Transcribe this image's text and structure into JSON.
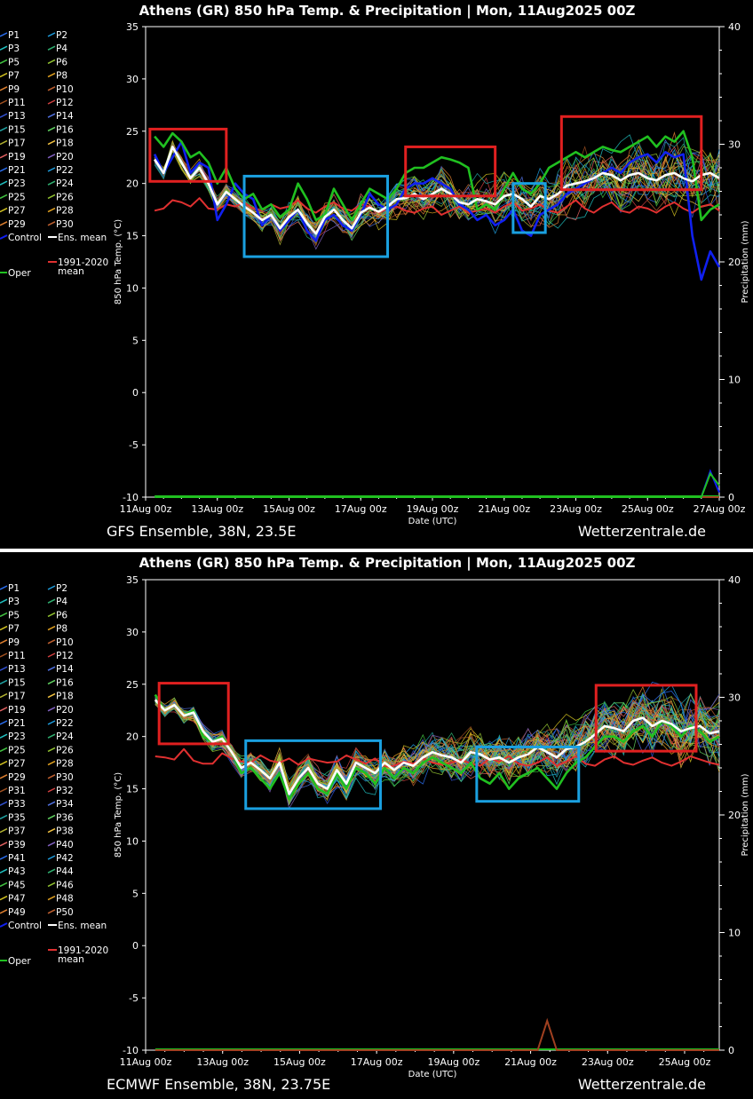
{
  "chart_data": [
    {
      "type": "line",
      "title": "Athens  (GR)  850 hPa Temp. & Precipitation | Mon, 11Aug2025 00Z",
      "ylabel": "850 hPa Temp. (°C)",
      "y2label": "Precipitation (mm)",
      "xlabel": "Date (UTC)",
      "ylim": [
        -10,
        35
      ],
      "y2lim": [
        0,
        40
      ],
      "yticks": [
        "35",
        "30",
        "25",
        "20",
        "15",
        "10",
        "5",
        "0",
        "-5",
        "-10"
      ],
      "y2ticks": [
        "40",
        "30",
        "20",
        "10",
        "0"
      ],
      "xticks": [
        "11Aug 00z",
        "13Aug 00z",
        "15Aug 00z",
        "17Aug 00z",
        "19Aug 00z",
        "21Aug 00z",
        "23Aug 00z",
        "25Aug 00z",
        "27Aug 00z"
      ],
      "footer_left": "GFS Ensemble, 38N, 23.5E",
      "footer_right": "Wetterzentrale.de",
      "legend": [
        "P1",
        "P2",
        "P3",
        "P4",
        "P5",
        "P6",
        "P7",
        "P8",
        "P9",
        "P10",
        "P11",
        "P12",
        "P13",
        "P14",
        "P15",
        "P16",
        "P17",
        "P18",
        "P19",
        "P20",
        "P21",
        "P22",
        "P23",
        "P24",
        "P25",
        "P26",
        "P27",
        "P28",
        "P29",
        "P30"
      ],
      "legend_special": [
        "Control",
        "Ens. mean",
        "1991-2020 mean",
        "Oper"
      ],
      "ens_mean": [
        22.3,
        21.0,
        23.5,
        22.0,
        20.5,
        21.5,
        20.0,
        18.0,
        19.2,
        18.5,
        17.8,
        17.2,
        16.5,
        17.0,
        15.7,
        16.8,
        17.5,
        16.2,
        15.2,
        16.8,
        17.5,
        16.5,
        15.7,
        17.2,
        17.7,
        17.3,
        17.8,
        18.5,
        18.6,
        19.0,
        18.5,
        19.0,
        19.5,
        19.0,
        18.2,
        18.0,
        18.5,
        18.3,
        18.0,
        18.8,
        19.0,
        18.5,
        17.8,
        18.8,
        18.5,
        19.0,
        19.8,
        20.0,
        20.2,
        20.5,
        21.0,
        20.8,
        20.3,
        20.8,
        21.0,
        20.5,
        20.3,
        20.8,
        21.0,
        20.5,
        20.2,
        20.8,
        21.0,
        20.5
      ],
      "control": [
        22.8,
        21.0,
        22.5,
        24.0,
        21.0,
        22.0,
        21.5,
        16.5,
        18.0,
        20.0,
        19.0,
        18.5,
        16.0,
        17.0,
        15.5,
        16.5,
        17.5,
        15.5,
        14.5,
        16.5,
        17.0,
        16.0,
        15.5,
        17.0,
        19.0,
        18.0,
        17.5,
        18.0,
        19.5,
        20.0,
        20.0,
        20.5,
        20.0,
        19.5,
        18.0,
        17.5,
        16.5,
        17.0,
        16.0,
        16.5,
        17.5,
        15.5,
        15.0,
        17.0,
        17.5,
        18.0,
        19.0,
        19.5,
        20.0,
        20.5,
        21.0,
        21.5,
        21.0,
        22.0,
        22.5,
        22.8,
        22.0,
        23.0,
        22.5,
        22.8,
        15.0,
        10.8,
        13.5,
        12.0
      ],
      "oper": [
        24.5,
        23.5,
        24.8,
        24.0,
        22.5,
        23.0,
        22.0,
        20.0,
        21.5,
        19.5,
        18.5,
        19.0,
        17.5,
        18.0,
        16.8,
        17.5,
        20.0,
        18.5,
        16.5,
        17.0,
        19.5,
        18.0,
        16.5,
        18.0,
        19.5,
        19.0,
        18.5,
        19.5,
        21.0,
        21.5,
        21.5,
        22.0,
        22.5,
        22.3,
        22.0,
        21.5,
        17.5,
        18.0,
        17.5,
        19.5,
        21.0,
        19.5,
        19.0,
        20.0,
        21.5,
        22.0,
        22.5,
        23.0,
        22.5,
        23.0,
        23.5,
        23.2,
        23.0,
        23.5,
        24.0,
        24.5,
        23.5,
        24.5,
        24.0,
        25.0,
        22.5,
        16.5,
        17.5,
        18.0
      ],
      "clim": [
        17.4,
        17.6,
        18.4,
        18.2,
        17.8,
        18.6,
        17.6,
        17.5,
        18.0,
        17.8,
        18.2,
        17.6,
        17.4,
        18.0,
        17.6,
        17.8,
        18.4,
        17.6,
        17.2,
        17.8,
        18.2,
        17.6,
        17.4,
        18.0,
        17.8,
        17.2,
        17.6,
        17.8,
        17.4,
        17.2,
        17.6,
        17.8,
        17.0,
        17.4,
        17.8,
        17.2,
        17.4,
        17.6,
        17.2,
        17.8,
        18.2,
        17.4,
        17.6,
        18.0,
        17.4,
        17.2,
        17.8,
        18.4,
        17.6,
        17.2,
        17.8,
        18.2,
        17.4,
        17.2,
        17.8,
        17.6,
        17.2,
        17.8,
        18.2,
        17.6,
        17.2,
        17.8,
        18.0,
        17.4
      ],
      "precip_control": [
        0,
        0,
        0,
        0,
        0,
        0,
        0,
        0,
        0,
        0,
        0,
        0,
        0,
        0,
        0,
        0,
        0,
        0,
        0,
        0,
        0,
        0,
        0,
        0,
        0,
        0,
        0,
        0,
        0,
        0,
        0,
        0,
        0,
        0,
        0,
        0,
        0,
        0,
        0,
        0,
        0,
        0,
        0,
        0,
        0,
        0,
        0,
        0,
        0,
        0,
        0,
        0,
        0,
        0,
        0,
        0,
        0,
        0,
        0,
        0,
        0,
        0,
        2.2,
        0.4
      ],
      "precip_oper": [
        0,
        0,
        0,
        0,
        0,
        0,
        0,
        0,
        0,
        0,
        0,
        0,
        0,
        0,
        0,
        0,
        0,
        0,
        0,
        0,
        0,
        0,
        0,
        0,
        0,
        0,
        0,
        0,
        0,
        0,
        0,
        0,
        0,
        0,
        0,
        0,
        0,
        0,
        0,
        0,
        0,
        0,
        0,
        0,
        0,
        0,
        0,
        0,
        0,
        0,
        0,
        0,
        0,
        0,
        0,
        0,
        0,
        0,
        0,
        0,
        0,
        0,
        2.0,
        1.0
      ],
      "precip_member_spike": [
        0,
        0,
        0,
        0,
        0,
        0,
        0,
        0,
        0,
        0,
        0,
        0,
        0,
        0,
        0,
        0,
        0,
        0,
        0,
        0,
        0,
        0,
        0,
        0,
        0,
        0,
        0,
        0,
        0,
        0,
        0,
        0,
        0,
        0,
        0,
        0,
        0,
        0,
        0,
        0,
        0,
        0,
        0,
        0,
        0,
        0,
        0,
        0,
        0,
        0,
        0,
        0,
        0,
        0,
        0,
        0,
        0,
        0,
        0,
        0,
        0,
        0,
        0,
        0
      ],
      "annotation_boxes": [
        {
          "color": "#e02020",
          "x0": 0.12,
          "x1": 2.25,
          "y0": 20.2,
          "y1": 25.2
        },
        {
          "color": "#1aa0e0",
          "x0": 2.75,
          "x1": 6.75,
          "y0": 13.0,
          "y1": 20.7
        },
        {
          "color": "#e02020",
          "x0": 7.25,
          "x1": 9.75,
          "y0": 18.8,
          "y1": 23.5
        },
        {
          "color": "#1aa0e0",
          "x0": 10.25,
          "x1": 11.15,
          "y0": 15.3,
          "y1": 20.0
        },
        {
          "color": "#e02020",
          "x0": 11.6,
          "x1": 15.5,
          "y0": 19.4,
          "y1": 26.4
        }
      ]
    },
    {
      "type": "line",
      "title": "Athens  (GR)  850 hPa Temp. & Precipitation | Mon, 11Aug2025 00Z",
      "ylabel": "850 hPa Temp. (°C)",
      "y2label": "Precipitation (mm)",
      "xlabel": "Date (UTC)",
      "ylim": [
        -10,
        35
      ],
      "y2lim": [
        0,
        40
      ],
      "yticks": [
        "35",
        "30",
        "25",
        "20",
        "15",
        "10",
        "5",
        "0",
        "-5",
        "-10"
      ],
      "y2ticks": [
        "40",
        "30",
        "20",
        "10",
        "0"
      ],
      "xticks": [
        "11Aug 00z",
        "13Aug 00z",
        "15Aug 00z",
        "17Aug 00z",
        "19Aug 00z",
        "21Aug 00z",
        "23Aug 00z",
        "25Aug 00z"
      ],
      "footer_left": "ECMWF Ensemble, 38N, 23.75E",
      "footer_right": "Wetterzentrale.de",
      "legend": [
        "P1",
        "P2",
        "P3",
        "P4",
        "P5",
        "P6",
        "P7",
        "P8",
        "P9",
        "P10",
        "P11",
        "P12",
        "P13",
        "P14",
        "P15",
        "P16",
        "P17",
        "P18",
        "P19",
        "P20",
        "P21",
        "P22",
        "P23",
        "P24",
        "P25",
        "P26",
        "P27",
        "P28",
        "P29",
        "P30",
        "P31",
        "P32",
        "P33",
        "P34",
        "P35",
        "P36",
        "P37",
        "P38",
        "P39",
        "P40",
        "P41",
        "P42",
        "P43",
        "P44",
        "P45",
        "P46",
        "P47",
        "P48",
        "P49",
        "P50"
      ],
      "legend_special": [
        "Control",
        "Ens. mean",
        "1991-2020 mean",
        "Oper"
      ],
      "ens_mean": [
        23.5,
        22.5,
        23.0,
        22.0,
        22.3,
        20.5,
        19.5,
        19.8,
        18.5,
        17.0,
        17.5,
        16.8,
        16.0,
        17.5,
        14.5,
        16.0,
        17.0,
        15.5,
        15.0,
        16.8,
        15.5,
        17.5,
        17.0,
        16.5,
        17.5,
        16.8,
        17.5,
        17.2,
        18.0,
        18.5,
        18.2,
        18.0,
        17.5,
        18.5,
        18.3,
        17.8,
        18.0,
        17.5,
        18.0,
        18.3,
        19.0,
        18.5,
        18.0,
        18.8,
        19.0,
        19.5,
        20.2,
        21.0,
        20.8,
        20.5,
        21.5,
        21.8,
        21.0,
        21.5,
        21.2,
        20.5,
        20.8,
        21.0,
        20.3,
        20.5
      ],
      "oper": [
        24.0,
        22.5,
        23.0,
        22.0,
        22.5,
        20.0,
        19.5,
        20.0,
        18.5,
        16.5,
        17.0,
        16.0,
        15.0,
        16.5,
        14.0,
        15.5,
        16.5,
        15.0,
        14.5,
        16.5,
        15.0,
        17.0,
        16.5,
        15.5,
        17.0,
        16.0,
        17.0,
        16.5,
        17.5,
        18.0,
        17.5,
        17.0,
        16.5,
        17.5,
        16.0,
        15.5,
        16.5,
        15.0,
        16.0,
        16.5,
        17.0,
        16.0,
        15.0,
        16.5,
        17.5,
        18.0,
        19.0,
        20.0,
        20.0,
        19.5,
        20.5,
        21.0,
        20.0,
        21.5,
        21.0,
        20.0,
        21.0,
        20.5,
        19.5,
        20.0
      ],
      "clim": [
        18.1,
        18.0,
        17.8,
        18.8,
        17.7,
        17.4,
        17.4,
        18.4,
        17.9,
        17.6,
        17.5,
        18.2,
        17.7,
        17.5,
        17.9,
        17.3,
        17.9,
        17.7,
        17.5,
        17.6,
        18.2,
        17.8,
        17.4,
        17.9,
        17.1,
        17.2,
        17.6,
        17.4,
        17.9,
        17.5,
        17.3,
        17.5,
        17.8,
        17.4,
        17.2,
        17.9,
        17.6,
        18.1,
        17.4,
        17.2,
        17.5,
        18.0,
        17.2,
        17.6,
        18.1,
        17.4,
        17.2,
        17.8,
        18.1,
        17.5,
        17.3,
        17.7,
        18.0,
        17.5,
        17.2,
        17.6,
        18.1,
        17.8,
        17.5,
        17.3
      ],
      "precip_member_spike": [
        0,
        0,
        0,
        0,
        0,
        0,
        0,
        0,
        0,
        0,
        0,
        0,
        0,
        0,
        0,
        0,
        0,
        0,
        0,
        0,
        0,
        0,
        0,
        0,
        0,
        0,
        0,
        0,
        0,
        0,
        0,
        0,
        0,
        0,
        0,
        0,
        0,
        0,
        0,
        0,
        0,
        2.5,
        0,
        0,
        0,
        0,
        0,
        0,
        0,
        0,
        0,
        0,
        0,
        0,
        0,
        0,
        0,
        0,
        0,
        0
      ],
      "annotation_boxes": [
        {
          "color": "#e02020",
          "x0": 0.35,
          "x1": 2.15,
          "y0": 19.3,
          "y1": 25.1
        },
        {
          "color": "#1aa0e0",
          "x0": 2.6,
          "x1": 6.1,
          "y0": 13.1,
          "y1": 19.6
        },
        {
          "color": "#1aa0e0",
          "x0": 8.6,
          "x1": 11.25,
          "y0": 13.8,
          "y1": 19.0
        },
        {
          "color": "#e02020",
          "x0": 11.7,
          "x1": 14.3,
          "y0": 18.6,
          "y1": 24.9
        }
      ]
    }
  ]
}
